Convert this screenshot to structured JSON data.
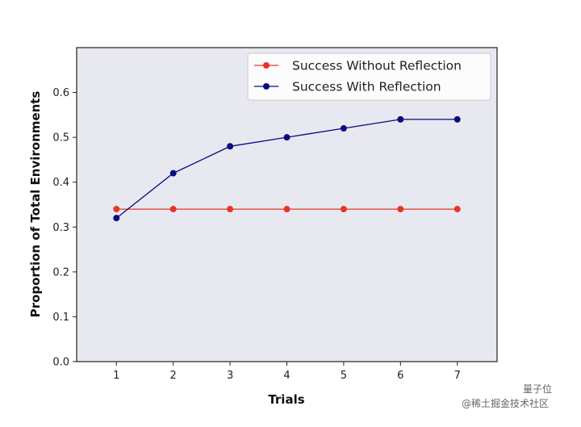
{
  "chart_data": {
    "type": "line",
    "title": "",
    "xlabel": "Trials",
    "ylabel": "Proportion of Total Environments",
    "x": [
      1,
      2,
      3,
      4,
      5,
      6,
      7
    ],
    "xlim": [
      0.3,
      7.7
    ],
    "ylim": [
      0.0,
      0.7
    ],
    "yticks": [
      0.0,
      0.1,
      0.2,
      0.3,
      0.4,
      0.5,
      0.6
    ],
    "yticks_labels": [
      "0.0",
      "0.1",
      "0.2",
      "0.3",
      "0.4",
      "0.5",
      "0.6"
    ],
    "grid": false,
    "legend_position": "top-right",
    "background_color": "#e8e8f0",
    "series": [
      {
        "name": "Success Without Reflection",
        "color": "#e8342a",
        "values": [
          0.34,
          0.34,
          0.34,
          0.34,
          0.34,
          0.34,
          0.34
        ]
      },
      {
        "name": "Success With Reflection",
        "color": "#0a0a80",
        "values": [
          0.32,
          0.42,
          0.48,
          0.5,
          0.52,
          0.54,
          0.54
        ]
      }
    ]
  },
  "watermark": {
    "line1": "量子位",
    "line2": "@稀土掘金技术社区"
  }
}
